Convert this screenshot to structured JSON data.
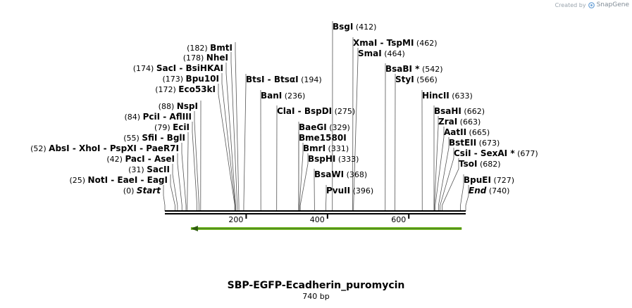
{
  "branding": {
    "created_by": "Created by",
    "app_name": "SnapGene"
  },
  "sequence": {
    "name": "SBP-EGFP-Ecadherin_puromycin",
    "length_label": "740 bp",
    "length": 740
  },
  "ruler": {
    "ticks": [
      200,
      400,
      600
    ]
  },
  "feature": {
    "name": "arrow-feature",
    "start": 64,
    "end": 730,
    "direction": "reverse",
    "color": "#7bc12b"
  },
  "colors": {
    "backbone": "#000000",
    "leader": "#555555",
    "feature": "#7bc12b"
  },
  "sites": [
    {
      "id": "start",
      "site": 0,
      "pos_label": "(0)",
      "names": [
        {
          "text": "Start",
          "italic": true
        }
      ]
    },
    {
      "id": "noti",
      "site": 25,
      "pos_label": "(25)",
      "names": [
        {
          "text": "NotI"
        },
        {
          "text": "EaeI"
        },
        {
          "text": "EagI"
        }
      ]
    },
    {
      "id": "sacii",
      "site": 31,
      "pos_label": "(31)",
      "names": [
        {
          "text": "SacII"
        }
      ]
    },
    {
      "id": "paci",
      "site": 42,
      "pos_label": "(42)",
      "names": [
        {
          "text": "PacI"
        },
        {
          "text": "AseI"
        }
      ]
    },
    {
      "id": "absi",
      "site": 52,
      "pos_label": "(52)",
      "names": [
        {
          "text": "AbsI"
        },
        {
          "text": "XhoI"
        },
        {
          "text": "PspXI"
        },
        {
          "text": "PaeR7I"
        }
      ]
    },
    {
      "id": "sfii",
      "site": 55,
      "pos_label": "(55)",
      "names": [
        {
          "text": "SfiI"
        },
        {
          "text": "BglI"
        }
      ]
    },
    {
      "id": "ecii",
      "site": 79,
      "pos_label": "(79)",
      "names": [
        {
          "text": "EciI"
        }
      ]
    },
    {
      "id": "pcii",
      "site": 84,
      "pos_label": "(84)",
      "names": [
        {
          "text": "PciI"
        },
        {
          "text": "AflIII"
        }
      ]
    },
    {
      "id": "nspi",
      "site": 88,
      "pos_label": "(88)",
      "names": [
        {
          "text": "NspI"
        }
      ]
    },
    {
      "id": "eco53ki",
      "site": 172,
      "pos_label": "(172)",
      "names": [
        {
          "text": "Eco53kI"
        }
      ]
    },
    {
      "id": "bpu10i",
      "site": 173,
      "pos_label": "(173)",
      "names": [
        {
          "text": "Bpu10I"
        }
      ]
    },
    {
      "id": "saci",
      "site": 174,
      "pos_label": "(174)",
      "names": [
        {
          "text": "SacI"
        },
        {
          "text": "BsiHKAI"
        }
      ]
    },
    {
      "id": "nhei",
      "site": 178,
      "pos_label": "(178)",
      "names": [
        {
          "text": "NheI"
        }
      ]
    },
    {
      "id": "bmti",
      "site": 182,
      "pos_label": "(182)",
      "names": [
        {
          "text": "BmtI"
        }
      ]
    },
    {
      "id": "btsi",
      "site": 194,
      "pos_label": "(194)",
      "names": [
        {
          "text": "BtsI"
        },
        {
          "text": "BtsαI"
        }
      ]
    },
    {
      "id": "bani",
      "site": 236,
      "pos_label": "(236)",
      "names": [
        {
          "text": "BanI"
        }
      ]
    },
    {
      "id": "clai",
      "site": 275,
      "pos_label": "(275)",
      "names": [
        {
          "text": "ClaI"
        },
        {
          "text": "BspDI"
        }
      ]
    },
    {
      "id": "baegi",
      "site": 329,
      "pos_label": "(329)",
      "names": [
        {
          "text": "BaeGI"
        }
      ]
    },
    {
      "id": "bme1580i",
      "site": 329,
      "pos_label": "",
      "names": [
        {
          "text": "Bme1580I"
        }
      ]
    },
    {
      "id": "bmri",
      "site": 331,
      "pos_label": "(331)",
      "names": [
        {
          "text": "BmrI"
        }
      ]
    },
    {
      "id": "bsphi",
      "site": 333,
      "pos_label": "(333)",
      "names": [
        {
          "text": "BspHI"
        }
      ]
    },
    {
      "id": "bsawi",
      "site": 368,
      "pos_label": "(368)",
      "names": [
        {
          "text": "BsaWI"
        }
      ]
    },
    {
      "id": "pvuii",
      "site": 396,
      "pos_label": "(396)",
      "names": [
        {
          "text": "PvuII"
        }
      ]
    },
    {
      "id": "bsgi",
      "site": 412,
      "pos_label": "(412)",
      "names": [
        {
          "text": "BsgI"
        }
      ]
    },
    {
      "id": "xmai",
      "site": 462,
      "pos_label": "(462)",
      "names": [
        {
          "text": "XmaI"
        },
        {
          "text": "TspMI"
        }
      ]
    },
    {
      "id": "smai",
      "site": 464,
      "pos_label": "(464)",
      "names": [
        {
          "text": "SmaI"
        }
      ]
    },
    {
      "id": "bsabi",
      "site": 542,
      "pos_label": "(542)",
      "names": [
        {
          "text": "BsaBI *"
        }
      ]
    },
    {
      "id": "styi",
      "site": 566,
      "pos_label": "(566)",
      "names": [
        {
          "text": "StyI"
        }
      ]
    },
    {
      "id": "hincii",
      "site": 633,
      "pos_label": "(633)",
      "names": [
        {
          "text": "HincII"
        }
      ]
    },
    {
      "id": "bsahi",
      "site": 662,
      "pos_label": "(662)",
      "names": [
        {
          "text": "BsaHI"
        }
      ]
    },
    {
      "id": "zrai",
      "site": 663,
      "pos_label": "(663)",
      "names": [
        {
          "text": "ZraI"
        }
      ]
    },
    {
      "id": "aatii",
      "site": 665,
      "pos_label": "(665)",
      "names": [
        {
          "text": "AatII"
        }
      ]
    },
    {
      "id": "bsteii",
      "site": 673,
      "pos_label": "(673)",
      "names": [
        {
          "text": "BstEII"
        }
      ]
    },
    {
      "id": "csii",
      "site": 677,
      "pos_label": "(677)",
      "names": [
        {
          "text": "CsiI"
        },
        {
          "text": "SexAI *"
        }
      ]
    },
    {
      "id": "tsoi",
      "site": 682,
      "pos_label": "(682)",
      "names": [
        {
          "text": "TsoI"
        }
      ]
    },
    {
      "id": "bpuei",
      "site": 727,
      "pos_label": "(727)",
      "names": [
        {
          "text": "BpuEI"
        }
      ]
    },
    {
      "id": "end",
      "site": 740,
      "pos_label": "(740)",
      "names": [
        {
          "text": "End",
          "italic": true
        }
      ]
    }
  ]
}
